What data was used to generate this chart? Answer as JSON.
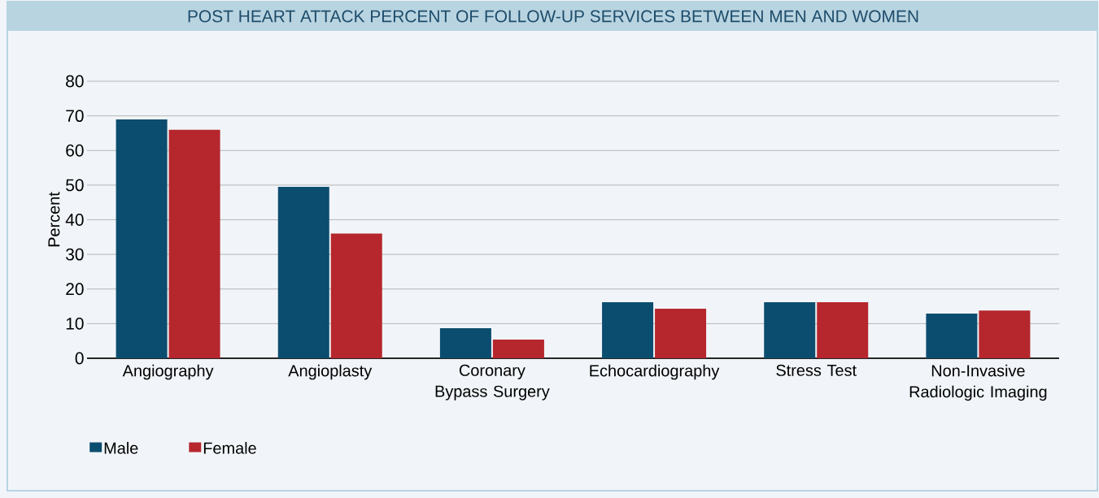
{
  "chart_data": {
    "type": "bar",
    "title": "POST HEART ATTACK PERCENT OF FOLLOW-UP SERVICES BETWEEN MEN AND WOMEN",
    "categories": [
      "Angiography",
      "Angioplasty",
      "Coronary Bypass Surgery",
      "Echocardiography",
      "Stress Test",
      "Non-Invasive Radiologic Imaging"
    ],
    "series": [
      {
        "name": "Male",
        "color": "#0b4d6f",
        "values": [
          69,
          49.5,
          8.7,
          16.2,
          16.2,
          12.9
        ]
      },
      {
        "name": "Female",
        "color": "#b5272d",
        "values": [
          66,
          36,
          5.4,
          14.3,
          16.2,
          13.8
        ]
      }
    ],
    "ylabel": "Percent",
    "ylim": [
      0,
      80
    ],
    "yticks": [
      0,
      10,
      20,
      30,
      40,
      50,
      60,
      70,
      80
    ],
    "grid": "y",
    "legend": "bottom left"
  }
}
